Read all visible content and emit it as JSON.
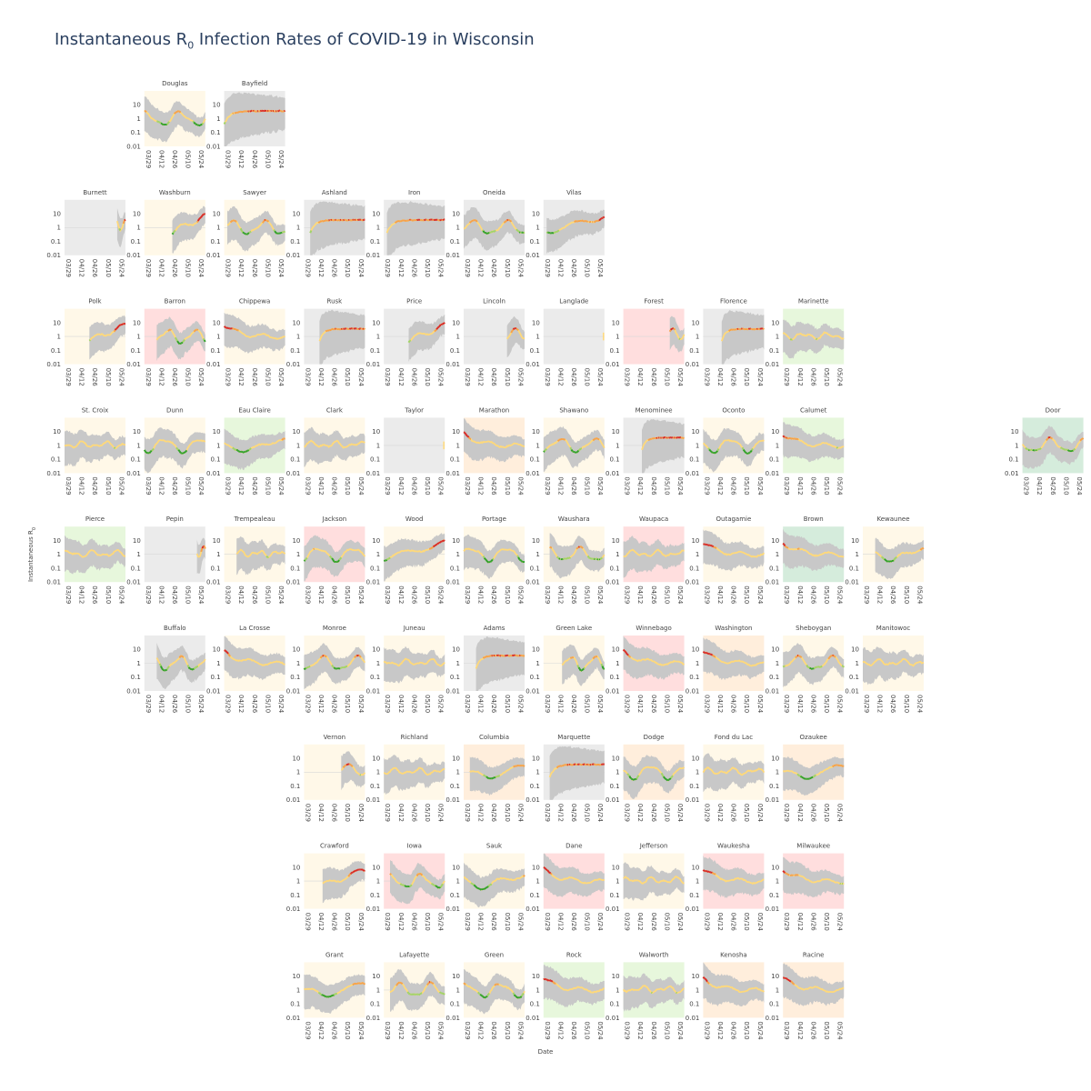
{
  "title": {
    "main": "Instantaneous R",
    "sub": "0",
    "rest": " Infection Rates of COVID-19 in Wisconsin"
  },
  "chart_data": {
    "type": "line",
    "yscale": "log",
    "ylabel": "Instantaneous R",
    "ylabel_sub": "0",
    "xlabel": "Date",
    "ylim": [
      0.01,
      100
    ],
    "y_ticks": [
      "10",
      "1",
      "0.1",
      "0.01"
    ],
    "x_ticks": [
      "03/29",
      "04/12",
      "04/26",
      "05/10",
      "05/24"
    ],
    "colors": {
      "mean": "#ffd97a",
      "band": "#c8c8c8",
      "red": "#d62728",
      "orange": "#f5a04a",
      "green": "#2ca02c",
      "light_green": "#9ed36a"
    },
    "status_colors": {
      "gray": "#ebebeb",
      "cream": "#fff8e8",
      "pink": "#ffdede",
      "peach": "#ffeedc",
      "light_green": "#e7f7dc",
      "green": "#d5ecdc"
    },
    "counties": [
      {
        "name": "Douglas",
        "row": 0,
        "col": 1,
        "status": "cream",
        "pattern": "wave",
        "start": 0.0
      },
      {
        "name": "Bayfield",
        "row": 0,
        "col": 2,
        "status": "gray",
        "pattern": "flat",
        "start": 0.0
      },
      {
        "name": "Burnett",
        "row": 1,
        "col": 0,
        "status": "gray",
        "pattern": "late",
        "start": 0.85
      },
      {
        "name": "Washburn",
        "row": 1,
        "col": 1,
        "status": "cream",
        "pattern": "rise",
        "start": 0.45
      },
      {
        "name": "Sawyer",
        "row": 1,
        "col": 2,
        "status": "cream",
        "pattern": "wave",
        "start": 0.05
      },
      {
        "name": "Ashland",
        "row": 1,
        "col": 3,
        "status": "gray",
        "pattern": "flat",
        "start": 0.1
      },
      {
        "name": "Iron",
        "row": 1,
        "col": 4,
        "status": "gray",
        "pattern": "flat",
        "start": 0.05
      },
      {
        "name": "Oneida",
        "row": 1,
        "col": 5,
        "status": "gray",
        "pattern": "wave",
        "start": 0.0
      },
      {
        "name": "Vilas",
        "row": 1,
        "col": 6,
        "status": "gray",
        "pattern": "rise",
        "start": 0.05
      },
      {
        "name": "Polk",
        "row": 2,
        "col": 0,
        "status": "cream",
        "pattern": "rise",
        "start": 0.4
      },
      {
        "name": "Barron",
        "row": 2,
        "col": 1,
        "status": "pink",
        "pattern": "wave",
        "start": 0.2
      },
      {
        "name": "Chippewa",
        "row": 2,
        "col": 2,
        "status": "cream",
        "pattern": "decay",
        "start": 0.0
      },
      {
        "name": "Rusk",
        "row": 2,
        "col": 3,
        "status": "gray",
        "pattern": "flat",
        "start": 0.25
      },
      {
        "name": "Price",
        "row": 2,
        "col": 4,
        "status": "gray",
        "pattern": "rise",
        "start": 0.4
      },
      {
        "name": "Lincoln",
        "row": 2,
        "col": 5,
        "status": "gray",
        "pattern": "late",
        "start": 0.7
      },
      {
        "name": "Langlade",
        "row": 2,
        "col": 6,
        "status": "gray",
        "pattern": "none",
        "start": 0.98
      },
      {
        "name": "Forest",
        "row": 2,
        "col": 7,
        "status": "pink",
        "pattern": "late",
        "start": 0.75
      },
      {
        "name": "Florence",
        "row": 2,
        "col": 8,
        "status": "gray",
        "pattern": "flat",
        "start": 0.3
      },
      {
        "name": "Marinette",
        "row": 2,
        "col": 9,
        "status": "light_green",
        "pattern": "noisy",
        "start": 0.0
      },
      {
        "name": "St. Croix",
        "row": 3,
        "col": 0,
        "status": "cream",
        "pattern": "noisy",
        "start": 0.0
      },
      {
        "name": "Dunn",
        "row": 3,
        "col": 1,
        "status": "cream",
        "pattern": "wave",
        "start": 0.0
      },
      {
        "name": "Eau Claire",
        "row": 3,
        "col": 2,
        "status": "light_green",
        "pattern": "dip",
        "start": 0.0
      },
      {
        "name": "Clark",
        "row": 3,
        "col": 3,
        "status": "cream",
        "pattern": "noisy",
        "start": 0.0
      },
      {
        "name": "Taylor",
        "row": 3,
        "col": 4,
        "status": "gray",
        "pattern": "none",
        "start": 0.98
      },
      {
        "name": "Marathon",
        "row": 3,
        "col": 5,
        "status": "peach",
        "pattern": "decay",
        "start": 0.0
      },
      {
        "name": "Shawano",
        "row": 3,
        "col": 6,
        "status": "cream",
        "pattern": "wave",
        "start": 0.0
      },
      {
        "name": "Menominee",
        "row": 3,
        "col": 7,
        "status": "gray",
        "pattern": "flat",
        "start": 0.3
      },
      {
        "name": "Oconto",
        "row": 3,
        "col": 8,
        "status": "cream",
        "pattern": "wave",
        "start": 0.0
      },
      {
        "name": "Calumet",
        "row": 3,
        "col": 9,
        "status": "light_green",
        "pattern": "decay",
        "start": 0.0
      },
      {
        "name": "Door",
        "row": 3,
        "col": 12,
        "status": "green",
        "pattern": "wave",
        "start": 0.0
      },
      {
        "name": "Pierce",
        "row": 4,
        "col": 0,
        "status": "light_green",
        "pattern": "noisy",
        "start": 0.0
      },
      {
        "name": "Pepin",
        "row": 4,
        "col": 1,
        "status": "gray",
        "pattern": "late",
        "start": 0.85
      },
      {
        "name": "Trempealeau",
        "row": 4,
        "col": 2,
        "status": "cream",
        "pattern": "noisy",
        "start": 0.2
      },
      {
        "name": "Jackson",
        "row": 4,
        "col": 3,
        "status": "pink",
        "pattern": "wave",
        "start": 0.0
      },
      {
        "name": "Wood",
        "row": 4,
        "col": 4,
        "status": "cream",
        "pattern": "rise",
        "start": 0.0
      },
      {
        "name": "Portage",
        "row": 4,
        "col": 5,
        "status": "cream",
        "pattern": "wave",
        "start": 0.0
      },
      {
        "name": "Waushara",
        "row": 4,
        "col": 6,
        "status": "cream",
        "pattern": "wave",
        "start": 0.1
      },
      {
        "name": "Waupaca",
        "row": 4,
        "col": 7,
        "status": "pink",
        "pattern": "noisy",
        "start": 0.0
      },
      {
        "name": "Outagamie",
        "row": 4,
        "col": 8,
        "status": "cream",
        "pattern": "decay",
        "start": 0.0
      },
      {
        "name": "Brown",
        "row": 4,
        "col": 9,
        "status": "green",
        "pattern": "decay",
        "start": 0.0
      },
      {
        "name": "Kewaunee",
        "row": 4,
        "col": 10,
        "status": "cream",
        "pattern": "dip",
        "start": 0.2
      },
      {
        "name": "Buffalo",
        "row": 5,
        "col": 1,
        "status": "gray",
        "pattern": "wave",
        "start": 0.2
      },
      {
        "name": "La Crosse",
        "row": 5,
        "col": 2,
        "status": "cream",
        "pattern": "decay",
        "start": 0.0
      },
      {
        "name": "Monroe",
        "row": 5,
        "col": 3,
        "status": "cream",
        "pattern": "wave",
        "start": 0.0
      },
      {
        "name": "Juneau",
        "row": 5,
        "col": 4,
        "status": "cream",
        "pattern": "noisy",
        "start": 0.0
      },
      {
        "name": "Adams",
        "row": 5,
        "col": 5,
        "status": "gray",
        "pattern": "flat",
        "start": 0.2
      },
      {
        "name": "Green Lake",
        "row": 5,
        "col": 6,
        "status": "cream",
        "pattern": "wave",
        "start": 0.3
      },
      {
        "name": "Winnebago",
        "row": 5,
        "col": 7,
        "status": "pink",
        "pattern": "decay",
        "start": 0.0
      },
      {
        "name": "Washington",
        "row": 5,
        "col": 8,
        "status": "peach",
        "pattern": "decay",
        "start": 0.0
      },
      {
        "name": "Sheboygan",
        "row": 5,
        "col": 9,
        "status": "cream",
        "pattern": "wave",
        "start": 0.0
      },
      {
        "name": "Manitowoc",
        "row": 5,
        "col": 10,
        "status": "cream",
        "pattern": "noisy",
        "start": 0.0
      },
      {
        "name": "Vernon",
        "row": 6,
        "col": 3,
        "status": "cream",
        "pattern": "late",
        "start": 0.6
      },
      {
        "name": "Richland",
        "row": 6,
        "col": 4,
        "status": "cream",
        "pattern": "noisy",
        "start": 0.0
      },
      {
        "name": "Columbia",
        "row": 6,
        "col": 5,
        "status": "peach",
        "pattern": "dip",
        "start": 0.1
      },
      {
        "name": "Marquette",
        "row": 6,
        "col": 6,
        "status": "gray",
        "pattern": "flat",
        "start": 0.1
      },
      {
        "name": "Dodge",
        "row": 6,
        "col": 7,
        "status": "peach",
        "pattern": "wave",
        "start": 0.0
      },
      {
        "name": "Fond du Lac",
        "row": 6,
        "col": 8,
        "status": "cream",
        "pattern": "noisy",
        "start": 0.0
      },
      {
        "name": "Ozaukee",
        "row": 6,
        "col": 9,
        "status": "peach",
        "pattern": "dip",
        "start": 0.0
      },
      {
        "name": "Crawford",
        "row": 7,
        "col": 3,
        "status": "cream",
        "pattern": "rise",
        "start": 0.3
      },
      {
        "name": "Iowa",
        "row": 7,
        "col": 4,
        "status": "pink",
        "pattern": "wave",
        "start": 0.1
      },
      {
        "name": "Sauk",
        "row": 7,
        "col": 5,
        "status": "cream",
        "pattern": "dip",
        "start": 0.0
      },
      {
        "name": "Dane",
        "row": 7,
        "col": 6,
        "status": "pink",
        "pattern": "decay",
        "start": 0.0
      },
      {
        "name": "Jefferson",
        "row": 7,
        "col": 7,
        "status": "cream",
        "pattern": "noisy",
        "start": 0.0
      },
      {
        "name": "Waukesha",
        "row": 7,
        "col": 8,
        "status": "pink",
        "pattern": "decay",
        "start": 0.0
      },
      {
        "name": "Milwaukee",
        "row": 7,
        "col": 9,
        "status": "pink",
        "pattern": "decay",
        "start": 0.0
      },
      {
        "name": "Grant",
        "row": 8,
        "col": 3,
        "status": "cream",
        "pattern": "dip",
        "start": 0.0
      },
      {
        "name": "Lafayette",
        "row": 8,
        "col": 4,
        "status": "cream",
        "pattern": "wave",
        "start": 0.1
      },
      {
        "name": "Green",
        "row": 8,
        "col": 5,
        "status": "cream",
        "pattern": "wave",
        "start": 0.0
      },
      {
        "name": "Rock",
        "row": 8,
        "col": 6,
        "status": "light_green",
        "pattern": "decay",
        "start": 0.0
      },
      {
        "name": "Walworth",
        "row": 8,
        "col": 7,
        "status": "light_green",
        "pattern": "noisy",
        "start": 0.0
      },
      {
        "name": "Kenosha",
        "row": 8,
        "col": 8,
        "status": "peach",
        "pattern": "decay",
        "start": 0.0
      },
      {
        "name": "Racine",
        "row": 8,
        "col": 9,
        "status": "peach",
        "pattern": "decay",
        "start": 0.0
      }
    ]
  }
}
